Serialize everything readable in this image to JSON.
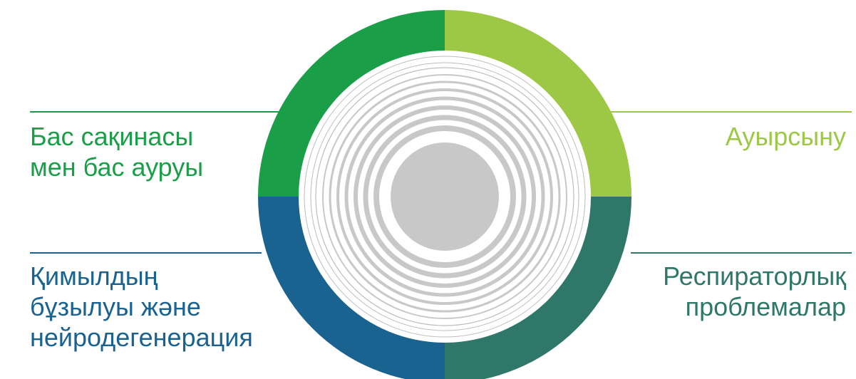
{
  "colors": {
    "top_left": "#1a9e48",
    "top_right": "#9dc846",
    "bottom_left": "#1a628f",
    "bottom_right": "#2f7768",
    "core_grey": "#c8c8c8",
    "thin_grey": "#bdbdbd"
  },
  "quadrants": {
    "top_left": {
      "lines": [
        "Бас сақинасы",
        "мен бас ауруы"
      ]
    },
    "top_right": {
      "lines": [
        "Ауырсыну"
      ]
    },
    "bottom_left": {
      "lines": [
        "Қимылдың",
        "бұзылуы және",
        "нейродегенерация"
      ]
    },
    "bottom_right": {
      "lines": [
        "Респираторлық",
        "проблемалар"
      ]
    }
  }
}
